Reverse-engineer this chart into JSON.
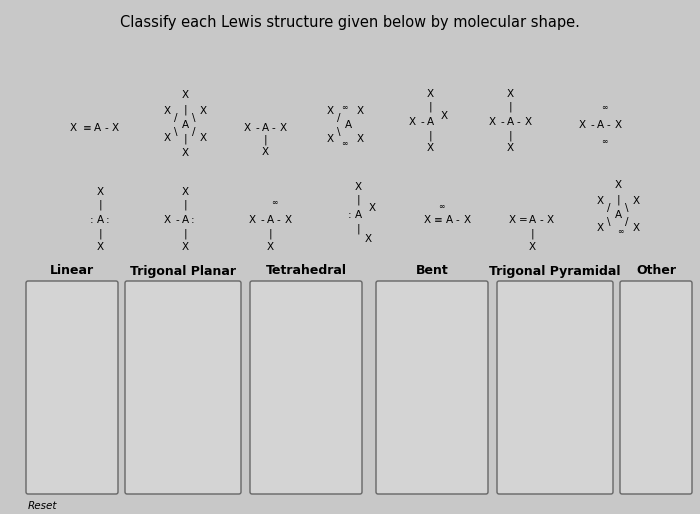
{
  "title": "Classify each Lewis structure given below by molecular shape.",
  "title_fontsize": 10.5,
  "background_color": "#c8c8c8",
  "box_color": "#d4d4d4",
  "box_edge_color": "#666666",
  "categories": [
    "Linear",
    "Trigonal Planar",
    "Tetrahedral",
    "Bent",
    "Trigonal Pyramidal",
    "Other"
  ],
  "reset_label": "Reset",
  "cat_fontsize": 9,
  "struct_fontsize": 7.5,
  "lone_pair_fontsize": 5.5
}
